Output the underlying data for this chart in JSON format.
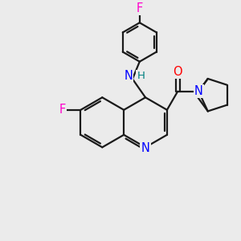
{
  "bg_color": "#ebebeb",
  "atom_colors": {
    "C": "#000000",
    "N": "#0000ff",
    "O": "#ff0000",
    "F": "#ff00cc",
    "H": "#008080"
  },
  "bond_color": "#1a1a1a",
  "bond_width": 1.6,
  "font_size_atom": 10.5
}
